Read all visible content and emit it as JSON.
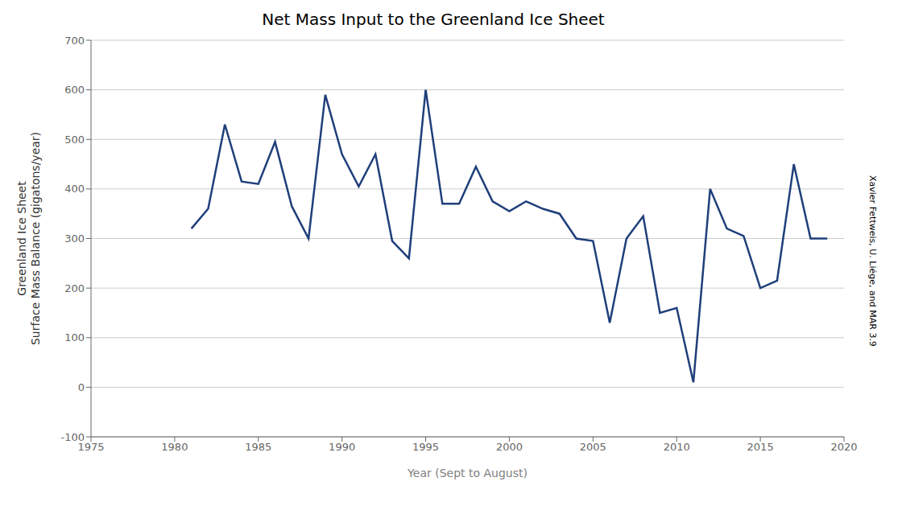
{
  "chart_data": {
    "type": "line",
    "title": "Net Mass Input to the Greenland Ice Sheet",
    "xlabel": "Year (Sept to August)",
    "ylabel": "Greenland Ice Sheet\nSurface Mass Balance (gigatons/year)",
    "annotations": [
      "Xavier Fettweis, U. Liége, and MAR 3.9"
    ],
    "x": [
      1981,
      1982,
      1983,
      1984,
      1985,
      1986,
      1987,
      1988,
      1989,
      1990,
      1991,
      1992,
      1993,
      1994,
      1995,
      1996,
      1997,
      1998,
      1999,
      2000,
      2001,
      2002,
      2003,
      2004,
      2005,
      2006,
      2007,
      2008,
      2009,
      2010,
      2011,
      2012,
      2013,
      2014,
      2015,
      2016,
      2017,
      2018,
      2019
    ],
    "values": [
      320,
      360,
      530,
      415,
      410,
      495,
      365,
      300,
      590,
      470,
      405,
      470,
      295,
      260,
      600,
      370,
      370,
      445,
      375,
      355,
      375,
      360,
      350,
      300,
      295,
      130,
      300,
      345,
      150,
      160,
      10,
      400,
      320,
      305,
      200,
      215,
      450,
      300,
      300
    ],
    "color": "#1f3f7a",
    "xlim": [
      1975,
      2020
    ],
    "ylim": [
      -100,
      700
    ],
    "xticks": [
      1975,
      1980,
      1985,
      1990,
      1995,
      2000,
      2005,
      2010,
      2015,
      2020
    ],
    "yticks": [
      -100,
      0,
      100,
      200,
      300,
      400,
      500,
      600,
      700
    ],
    "grid": true
  }
}
